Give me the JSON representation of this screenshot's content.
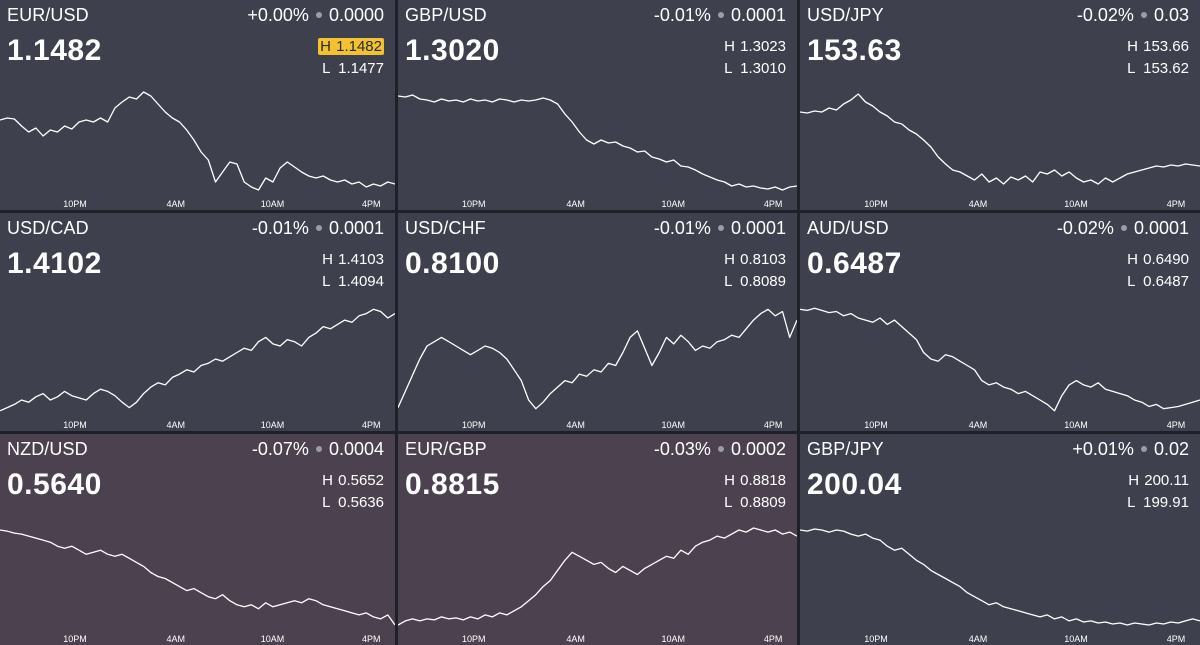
{
  "tiles": [
    {
      "pair": "EUR/USD",
      "change_pct": "+0.00%",
      "change_abs": "0.0000",
      "price": "1.1482",
      "high_label": "H",
      "high": "1.1482",
      "low_label": "L",
      "low": "1.1477",
      "high_highlighted": true,
      "tone": "neutral",
      "series": [
        0.72,
        0.74,
        0.73,
        0.66,
        0.6,
        0.64,
        0.56,
        0.62,
        0.6,
        0.66,
        0.63,
        0.7,
        0.72,
        0.7,
        0.74,
        0.7,
        0.84,
        0.9,
        0.95,
        0.93,
        1.0,
        0.96,
        0.88,
        0.8,
        0.74,
        0.7,
        0.62,
        0.52,
        0.4,
        0.32,
        0.1,
        0.2,
        0.3,
        0.28,
        0.1,
        0.05,
        0.02,
        0.14,
        0.1,
        0.24,
        0.3,
        0.25,
        0.2,
        0.16,
        0.14,
        0.16,
        0.12,
        0.1,
        0.12,
        0.08,
        0.1,
        0.05,
        0.08,
        0.06,
        0.1,
        0.08
      ]
    },
    {
      "pair": "GBP/USD",
      "change_pct": "-0.01%",
      "change_abs": "0.0001",
      "price": "1.3020",
      "high_label": "H",
      "high": "1.3023",
      "low_label": "L",
      "low": "1.3010",
      "high_highlighted": false,
      "tone": "neutral",
      "series": [
        0.96,
        0.95,
        0.97,
        0.93,
        0.92,
        0.9,
        0.93,
        0.91,
        0.92,
        0.9,
        0.93,
        0.91,
        0.92,
        0.9,
        0.93,
        0.92,
        0.9,
        0.92,
        0.91,
        0.92,
        0.94,
        0.92,
        0.88,
        0.78,
        0.7,
        0.6,
        0.52,
        0.48,
        0.52,
        0.49,
        0.5,
        0.46,
        0.44,
        0.4,
        0.41,
        0.35,
        0.33,
        0.3,
        0.32,
        0.26,
        0.25,
        0.22,
        0.18,
        0.15,
        0.12,
        0.1,
        0.06,
        0.08,
        0.05,
        0.06,
        0.04,
        0.03,
        0.05,
        0.02,
        0.05,
        0.06
      ]
    },
    {
      "pair": "USD/JPY",
      "change_pct": "-0.02%",
      "change_abs": "0.03",
      "price": "153.63",
      "high_label": "H",
      "high": "153.66",
      "low_label": "L",
      "low": "153.62",
      "high_highlighted": false,
      "tone": "neutral",
      "series": [
        0.8,
        0.79,
        0.81,
        0.8,
        0.84,
        0.82,
        0.88,
        0.92,
        0.98,
        0.9,
        0.86,
        0.8,
        0.76,
        0.7,
        0.68,
        0.62,
        0.58,
        0.52,
        0.45,
        0.35,
        0.28,
        0.22,
        0.2,
        0.16,
        0.12,
        0.18,
        0.1,
        0.14,
        0.08,
        0.15,
        0.12,
        0.16,
        0.1,
        0.2,
        0.18,
        0.22,
        0.16,
        0.2,
        0.14,
        0.1,
        0.12,
        0.08,
        0.14,
        0.1,
        0.14,
        0.18,
        0.2,
        0.22,
        0.24,
        0.26,
        0.25,
        0.27,
        0.26,
        0.28,
        0.27,
        0.26
      ]
    },
    {
      "pair": "USD/CAD",
      "change_pct": "-0.01%",
      "change_abs": "0.0001",
      "price": "1.4102",
      "high_label": "H",
      "high": "1.4103",
      "low_label": "L",
      "low": "1.4094",
      "high_highlighted": false,
      "tone": "neutral",
      "series": [
        0.02,
        0.05,
        0.08,
        0.12,
        0.1,
        0.15,
        0.18,
        0.12,
        0.15,
        0.2,
        0.16,
        0.14,
        0.12,
        0.18,
        0.22,
        0.2,
        0.16,
        0.1,
        0.05,
        0.1,
        0.18,
        0.24,
        0.28,
        0.26,
        0.33,
        0.36,
        0.4,
        0.38,
        0.44,
        0.46,
        0.5,
        0.48,
        0.52,
        0.56,
        0.6,
        0.58,
        0.66,
        0.7,
        0.64,
        0.62,
        0.68,
        0.66,
        0.62,
        0.7,
        0.74,
        0.8,
        0.78,
        0.82,
        0.86,
        0.84,
        0.9,
        0.92,
        0.96,
        0.94,
        0.88,
        0.92
      ]
    },
    {
      "pair": "USD/CHF",
      "change_pct": "-0.01%",
      "change_abs": "0.0001",
      "price": "0.8100",
      "high_label": "H",
      "high": "0.8103",
      "low_label": "L",
      "low": "0.8089",
      "high_highlighted": false,
      "tone": "neutral",
      "series": [
        0.05,
        0.2,
        0.35,
        0.5,
        0.62,
        0.66,
        0.7,
        0.66,
        0.62,
        0.58,
        0.54,
        0.58,
        0.62,
        0.6,
        0.56,
        0.5,
        0.4,
        0.3,
        0.12,
        0.04,
        0.1,
        0.18,
        0.24,
        0.3,
        0.28,
        0.36,
        0.34,
        0.4,
        0.38,
        0.46,
        0.44,
        0.56,
        0.7,
        0.76,
        0.6,
        0.44,
        0.56,
        0.7,
        0.64,
        0.72,
        0.66,
        0.58,
        0.62,
        0.6,
        0.66,
        0.68,
        0.72,
        0.7,
        0.78,
        0.86,
        0.92,
        0.96,
        0.9,
        0.94,
        0.7,
        0.86
      ]
    },
    {
      "pair": "AUD/USD",
      "change_pct": "-0.02%",
      "change_abs": "0.0001",
      "price": "0.6487",
      "high_label": "H",
      "high": "0.6490",
      "low_label": "L",
      "low": "0.6487",
      "high_highlighted": false,
      "tone": "neutral",
      "series": [
        0.96,
        0.95,
        0.97,
        0.95,
        0.93,
        0.94,
        0.9,
        0.92,
        0.88,
        0.86,
        0.84,
        0.88,
        0.82,
        0.86,
        0.8,
        0.74,
        0.68,
        0.56,
        0.5,
        0.48,
        0.54,
        0.52,
        0.48,
        0.44,
        0.4,
        0.3,
        0.26,
        0.28,
        0.24,
        0.22,
        0.18,
        0.2,
        0.16,
        0.12,
        0.08,
        0.02,
        0.16,
        0.26,
        0.3,
        0.26,
        0.24,
        0.28,
        0.22,
        0.2,
        0.18,
        0.16,
        0.12,
        0.1,
        0.06,
        0.08,
        0.04,
        0.05,
        0.06,
        0.08,
        0.1,
        0.12
      ]
    },
    {
      "pair": "NZD/USD",
      "change_pct": "-0.07%",
      "change_abs": "0.0004",
      "price": "0.5640",
      "high_label": "H",
      "high": "0.5652",
      "low_label": "L",
      "low": "0.5636",
      "high_highlighted": false,
      "tone": "down",
      "series": [
        0.96,
        0.95,
        0.93,
        0.92,
        0.9,
        0.88,
        0.86,
        0.84,
        0.8,
        0.78,
        0.8,
        0.76,
        0.72,
        0.74,
        0.76,
        0.72,
        0.7,
        0.72,
        0.68,
        0.64,
        0.6,
        0.54,
        0.5,
        0.48,
        0.44,
        0.4,
        0.36,
        0.38,
        0.34,
        0.3,
        0.28,
        0.32,
        0.26,
        0.22,
        0.2,
        0.22,
        0.18,
        0.24,
        0.2,
        0.22,
        0.24,
        0.26,
        0.24,
        0.28,
        0.26,
        0.22,
        0.2,
        0.18,
        0.16,
        0.14,
        0.12,
        0.14,
        0.1,
        0.08,
        0.12,
        0.02
      ]
    },
    {
      "pair": "EUR/GBP",
      "change_pct": "-0.03%",
      "change_abs": "0.0002",
      "price": "0.8815",
      "high_label": "H",
      "high": "0.8818",
      "low_label": "L",
      "low": "0.8809",
      "high_highlighted": false,
      "tone": "down",
      "series": [
        0.02,
        0.06,
        0.08,
        0.06,
        0.08,
        0.07,
        0.1,
        0.08,
        0.09,
        0.07,
        0.1,
        0.08,
        0.12,
        0.1,
        0.14,
        0.12,
        0.16,
        0.2,
        0.26,
        0.32,
        0.4,
        0.46,
        0.56,
        0.66,
        0.74,
        0.7,
        0.66,
        0.62,
        0.64,
        0.58,
        0.54,
        0.6,
        0.56,
        0.52,
        0.58,
        0.62,
        0.66,
        0.7,
        0.68,
        0.76,
        0.72,
        0.8,
        0.84,
        0.86,
        0.9,
        0.88,
        0.92,
        0.96,
        0.94,
        0.98,
        0.96,
        0.94,
        0.96,
        0.92,
        0.94,
        0.9
      ]
    },
    {
      "pair": "GBP/JPY",
      "change_pct": "+0.01%",
      "change_abs": "0.02",
      "price": "200.04",
      "high_label": "H",
      "high": "200.11",
      "low_label": "L",
      "low": "199.91",
      "high_highlighted": false,
      "tone": "neutral",
      "series": [
        0.96,
        0.95,
        0.97,
        0.96,
        0.94,
        0.96,
        0.95,
        0.92,
        0.9,
        0.92,
        0.88,
        0.86,
        0.8,
        0.76,
        0.78,
        0.72,
        0.66,
        0.62,
        0.56,
        0.52,
        0.48,
        0.44,
        0.4,
        0.34,
        0.3,
        0.26,
        0.22,
        0.24,
        0.2,
        0.18,
        0.16,
        0.14,
        0.12,
        0.1,
        0.12,
        0.08,
        0.1,
        0.06,
        0.08,
        0.05,
        0.06,
        0.04,
        0.05,
        0.03,
        0.04,
        0.02,
        0.04,
        0.03,
        0.02,
        0.04,
        0.03,
        0.05,
        0.04,
        0.06,
        0.08,
        0.06
      ]
    }
  ],
  "time_labels": [
    "10PM",
    "4AM",
    "10AM",
    "4PM"
  ],
  "colors": {
    "tile_bg": "#3e404d",
    "tile_bg_down": "#4c424f",
    "grid_gap": "#1f2129",
    "text": "#ffffff",
    "dot": "#9a9ca6",
    "high_flag": "#f2c230"
  }
}
